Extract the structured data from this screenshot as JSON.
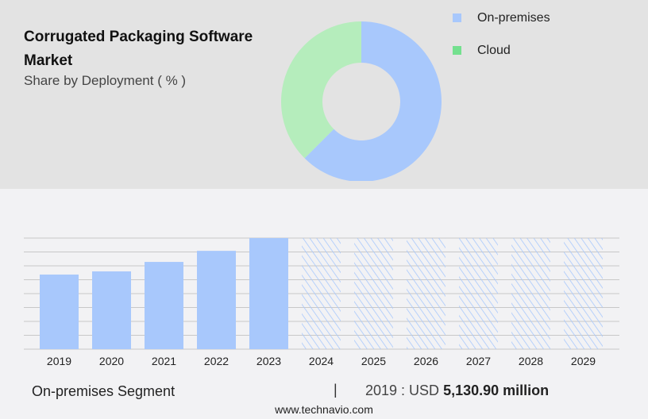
{
  "title": "Corrugated Packaging Software Market",
  "subtitle": "Share by Deployment ( % )",
  "colors": {
    "on_premises": "#a8c8fc",
    "cloud": "#b5edbc",
    "cloud_legend": "#74e08f"
  },
  "chart_data": [
    {
      "type": "pie",
      "donut": true,
      "legend_position": "right",
      "series": [
        {
          "name": "On-premises",
          "value": 62.5
        },
        {
          "name": "Cloud",
          "value": 37.5
        }
      ]
    },
    {
      "type": "bar",
      "categories": [
        "2019",
        "2020",
        "2021",
        "2022",
        "2023",
        "2024",
        "2025",
        "2026",
        "2027",
        "2028",
        "2029"
      ],
      "values": [
        5130.9,
        5350,
        6000,
        6760,
        7640,
        null,
        null,
        null,
        null,
        null,
        null
      ],
      "forecast_categories": [
        "2024",
        "2025",
        "2026",
        "2027",
        "2028",
        "2029"
      ],
      "ylim": [
        0,
        7640
      ],
      "grid": true,
      "unit": "USD million"
    }
  ],
  "footer": {
    "segment": "On-premises Segment",
    "separator": "|",
    "value_prefix": "2019 : USD",
    "value": "5,130.90 million",
    "source": "www.technavio.com"
  }
}
